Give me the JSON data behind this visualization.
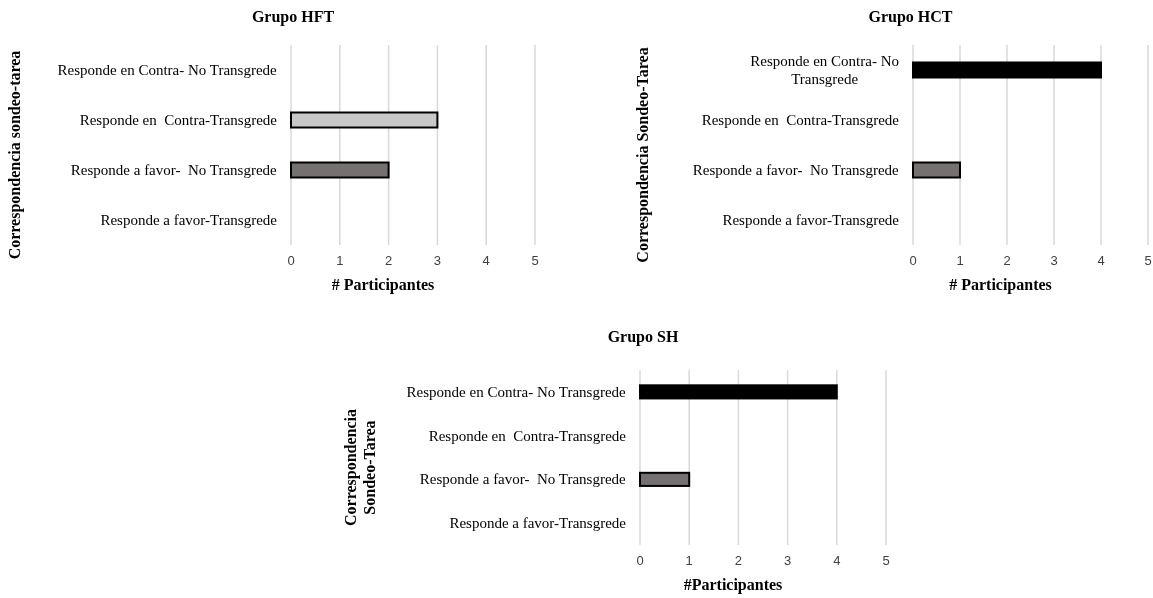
{
  "chart_data": [
    {
      "type": "bar",
      "orientation": "horizontal",
      "title": "Grupo HFT",
      "xlabel": "# Participantes",
      "ylabel": "Correspondencia sondeo-tarea",
      "categories": [
        "Responde en Contra- No Transgrede",
        "Responde en  Contra-Transgrede",
        "Responde a favor-  No Transgrede",
        "Responde a favor-Transgrede"
      ],
      "values": [
        0,
        3,
        2,
        0
      ],
      "colors": [
        "#000000",
        "#c8c8c8",
        "#767171",
        "#767171"
      ],
      "xlim": [
        0,
        5
      ],
      "xticks": [
        0,
        1,
        2,
        3,
        4,
        5
      ],
      "grid": "x"
    },
    {
      "type": "bar",
      "orientation": "horizontal",
      "title": "Grupo HCT",
      "xlabel": "# Participantes",
      "ylabel": "Correspondencia Sondeo-Tarea",
      "categories": [
        "Responde en Contra- No Transgrede",
        "Responde en  Contra-Transgrede",
        "Responde a favor-  No Transgrede",
        "Responde a favor-Transgrede"
      ],
      "values": [
        4,
        0,
        1,
        0
      ],
      "colors": [
        "#000000",
        "#c8c8c8",
        "#767171",
        "#767171"
      ],
      "xlim": [
        0,
        5
      ],
      "xticks": [
        0,
        1,
        2,
        3,
        4,
        5
      ],
      "grid": "x"
    },
    {
      "type": "bar",
      "orientation": "horizontal",
      "title": "Grupo SH",
      "xlabel": "#Participantes",
      "ylabel": "Correspondencia Sondeo-Tarea",
      "categories": [
        "Responde en Contra- No Transgrede",
        "Responde en  Contra-Transgrede",
        "Responde a favor-  No Transgrede",
        "Responde a favor-Transgrede"
      ],
      "values": [
        4,
        0,
        1,
        0
      ],
      "colors": [
        "#000000",
        "#c8c8c8",
        "#767171",
        "#767171"
      ],
      "xlim": [
        0,
        5
      ],
      "xticks": [
        0,
        1,
        2,
        3,
        4,
        5
      ],
      "grid": "x"
    }
  ]
}
